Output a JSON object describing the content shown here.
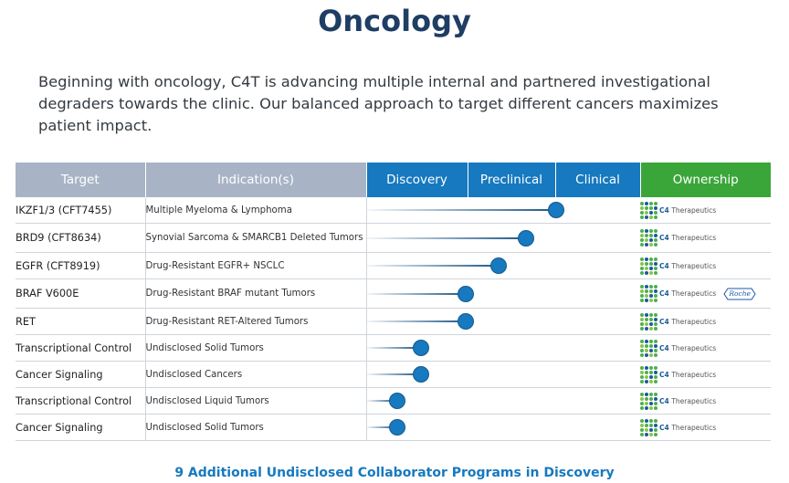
{
  "page": {
    "title": "Oncology",
    "intro": "Beginning with oncology, C4T is advancing multiple internal and partnered investigational degraders towards the clinic. Our balanced approach to target different cancers maximizes patient impact.",
    "footer": "9 Additional Undisclosed Collaborator Programs in Discovery"
  },
  "table": {
    "headers": {
      "target": "Target",
      "indication": "Indication(s)",
      "discovery": "Discovery",
      "preclinical": "Preclinical",
      "clinical": "Clinical",
      "ownership": "Ownership"
    },
    "rows": [
      {
        "target": "IKZF1/3 (CFT7455)",
        "indication": "Multiple Myeloma & Lymphoma",
        "progress": 0.69,
        "owner": "C4 Therapeutics",
        "partner": ""
      },
      {
        "target": "BRD9 (CFT8634)",
        "indication": "Synovial Sarcoma & SMARCB1 Deleted Tumors",
        "progress": 0.58,
        "owner": "C4 Therapeutics",
        "partner": ""
      },
      {
        "target": "EGFR (CFT8919)",
        "indication": "Drug-Resistant EGFR+ NSCLC",
        "progress": 0.48,
        "owner": "C4 Therapeutics",
        "partner": ""
      },
      {
        "target": "BRAF V600E",
        "indication": "Drug-Resistant BRAF mutant Tumors",
        "progress": 0.36,
        "owner": "C4 Therapeutics",
        "partner": "Roche"
      },
      {
        "target": "RET",
        "indication": "Drug-Resistant RET-Altered Tumors",
        "progress": 0.36,
        "owner": "C4 Therapeutics",
        "partner": ""
      },
      {
        "target": "Transcriptional Control",
        "indication": "Undisclosed Solid Tumors",
        "progress": 0.196,
        "owner": "C4 Therapeutics",
        "partner": ""
      },
      {
        "target": "Cancer Signaling",
        "indication": "Undisclosed Cancers",
        "progress": 0.196,
        "owner": "C4 Therapeutics",
        "partner": ""
      },
      {
        "target": "Transcriptional Control",
        "indication": "Undisclosed Liquid Tumors",
        "progress": 0.11,
        "owner": "C4 Therapeutics",
        "partner": ""
      },
      {
        "target": "Cancer Signaling",
        "indication": "Undisclosed Solid Tumors",
        "progress": 0.11,
        "owner": "C4 Therapeutics",
        "partner": ""
      }
    ]
  },
  "colors": {
    "title": "#1e3e64",
    "header_gray": "#a8b4c6",
    "header_blue": "#1779bf",
    "header_green": "#3aa63a",
    "dot": "#1779bf"
  }
}
